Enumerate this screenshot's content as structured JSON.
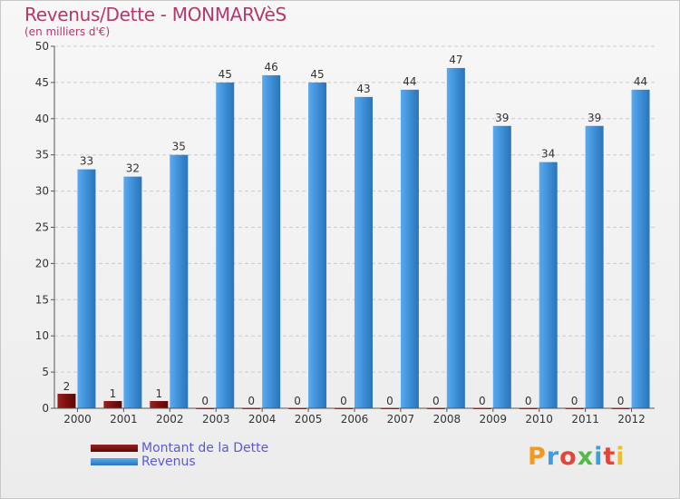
{
  "title": "Revenus/Dette - MONMARVèS",
  "subtitle": "(en milliers d'€)",
  "colors": {
    "debt": "#7a1010",
    "revenue": "#3d8fd6",
    "title": "#b5386a",
    "legend_text": "#5a5ad6"
  },
  "legend": {
    "debt_label": "Montant de la Dette",
    "revenue_label": "Revenus"
  },
  "logo": {
    "text": "Proxiti"
  },
  "chart_data": {
    "type": "bar",
    "title": "Revenus/Dette - MONMARVèS",
    "subtitle": "(en milliers d'€)",
    "categories": [
      "2000",
      "2001",
      "2002",
      "2003",
      "2004",
      "2005",
      "2006",
      "2007",
      "2008",
      "2009",
      "2010",
      "2011",
      "2012"
    ],
    "series": [
      {
        "name": "Montant de la Dette",
        "color": "#7a1010",
        "values": [
          2,
          1,
          1,
          0,
          0,
          0,
          0,
          0,
          0,
          0,
          0,
          0,
          0
        ]
      },
      {
        "name": "Revenus",
        "color": "#3d8fd6",
        "values": [
          33,
          32,
          35,
          45,
          46,
          45,
          43,
          44,
          47,
          39,
          34,
          39,
          44
        ]
      }
    ],
    "ylim": [
      0,
      50
    ],
    "yticks": [
      0,
      5,
      10,
      15,
      20,
      25,
      30,
      35,
      40,
      45,
      50
    ],
    "grid": true,
    "legend_position": "bottom-left"
  }
}
